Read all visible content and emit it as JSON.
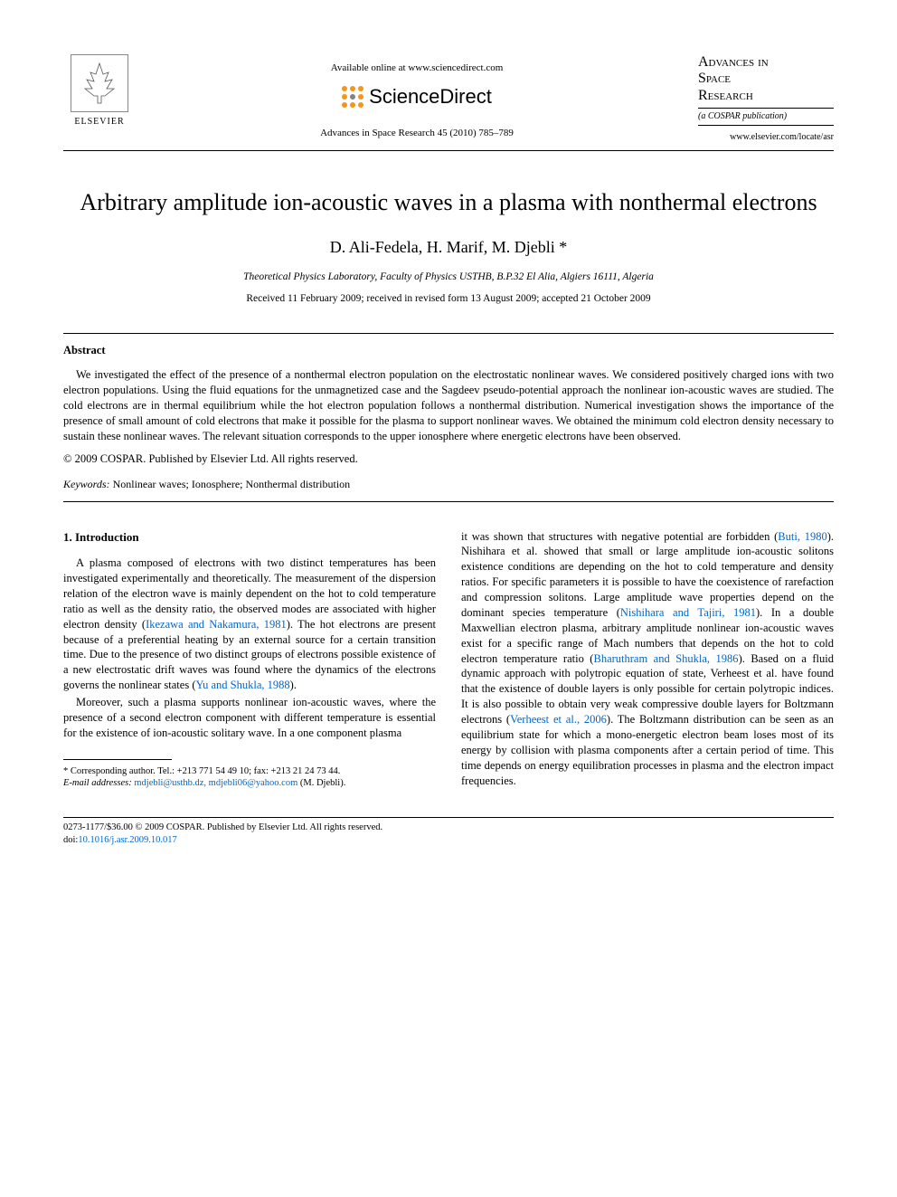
{
  "header": {
    "publisher": "ELSEVIER",
    "available_online": "Available online at www.sciencedirect.com",
    "sd_brand": "ScienceDirect",
    "journal_ref": "Advances in Space Research 45 (2010) 785–789",
    "journal_name_l1": "Advances in",
    "journal_name_l2": "Space",
    "journal_name_l3": "Research",
    "cospar": "(a COSPAR publication)",
    "journal_url": "www.elsevier.com/locate/asr",
    "sd_dot_colors": [
      "#f7941d",
      "#f7941d",
      "#f7941d",
      "#f7941d",
      "#808285",
      "#f7941d",
      "#f7941d",
      "#f7941d",
      "#f7941d"
    ]
  },
  "title": "Arbitrary amplitude ion-acoustic waves in a plasma with nonthermal electrons",
  "authors": "D. Ali-Fedela, H. Marif, M. Djebli *",
  "affiliation": "Theoretical Physics Laboratory, Faculty of Physics USTHB, B.P.32 El Alia, Algiers 16111, Algeria",
  "dates": "Received 11 February 2009; received in revised form 13 August 2009; accepted 21 October 2009",
  "abstract": {
    "heading": "Abstract",
    "body": "We investigated the effect of the presence of a nonthermal electron population on the electrostatic nonlinear waves. We considered positively charged ions with two electron populations. Using the fluid equations for the unmagnetized case and the Sagdeev pseudo-potential approach the nonlinear ion-acoustic waves are studied. The cold electrons are in thermal equilibrium while the hot electron population follows a nonthermal distribution. Numerical investigation shows the importance of the presence of small amount of cold electrons that make it possible for the plasma to support nonlinear waves. We obtained the minimum cold electron density necessary to sustain these nonlinear waves. The relevant situation corresponds to the upper ionosphere where energetic electrons have been observed.",
    "copyright": "© 2009 COSPAR. Published by Elsevier Ltd. All rights reserved."
  },
  "keywords": {
    "label": "Keywords:",
    "value": "Nonlinear waves; Ionosphere; Nonthermal distribution"
  },
  "section1": {
    "heading": "1. Introduction",
    "col1_p1_a": "A plasma composed of electrons with two distinct temperatures has been investigated experimentally and theoretically. The measurement of the dispersion relation of the electron wave is mainly dependent on the hot to cold temperature ratio as well as the density ratio, the observed modes are associated with higher electron density (",
    "cite1": "Ikezawa and Nakamura, 1981",
    "col1_p1_b": "). The hot electrons are present because of a preferential heating by an external source for a certain transition time. Due to the presence of two distinct groups of electrons possible existence of a new electrostatic drift waves was found where the dynamics of the electrons governs the nonlinear states (",
    "cite2": "Yu and Shukla, 1988",
    "col1_p1_c": ").",
    "col1_p2": "Moreover, such a plasma supports nonlinear ion-acoustic waves, where the presence of a second electron component with different temperature is essential for the existence of ion-acoustic solitary wave. In a one component plasma",
    "col2_a": "it was shown that structures with negative potential are forbidden (",
    "cite3": "Buti, 1980",
    "col2_b": "). Nishihara et al. showed that small or large amplitude ion-acoustic solitons existence conditions are depending on the hot to cold temperature and density ratios. For specific parameters it is possible to have the coexistence of rarefaction and compression solitons. Large amplitude wave properties depend on the dominant species temperature (",
    "cite4": "Nishihara and Tajiri, 1981",
    "col2_c": "). In a double Maxwellian electron plasma, arbitrary amplitude nonlinear ion-acoustic waves exist for a specific range of Mach numbers that depends on the hot to cold electron temperature ratio (",
    "cite5": "Bharuthram and Shukla, 1986",
    "col2_d": "). Based on a fluid dynamic approach with polytropic equation of state, Verheest et al. have found that the existence of double layers is only possible for certain polytropic indices. It is also possible to obtain very weak compressive double layers for Boltzmann electrons (",
    "cite6": "Verheest et al., 2006",
    "col2_e": "). The Boltzmann distribution can be seen as an equilibrium state for which a mono-energetic electron beam loses most of its energy by collision with plasma components after a certain period of time. This time depends on energy equilibration processes in plasma and the electron impact frequencies."
  },
  "footnote": {
    "line1": "* Corresponding author. Tel.: +213 771 54 49 10; fax: +213 21 24 73 44.",
    "line2_label": "E-mail addresses:",
    "line2_emails": "mdjebli@usthb.dz, mdjebli06@yahoo.com",
    "line2_tail": " (M. Djebli)."
  },
  "footer": {
    "issn_line": "0273-1177/$36.00 © 2009 COSPAR. Published by Elsevier Ltd. All rights reserved.",
    "doi_label": "doi:",
    "doi": "10.1016/j.asr.2009.10.017"
  }
}
